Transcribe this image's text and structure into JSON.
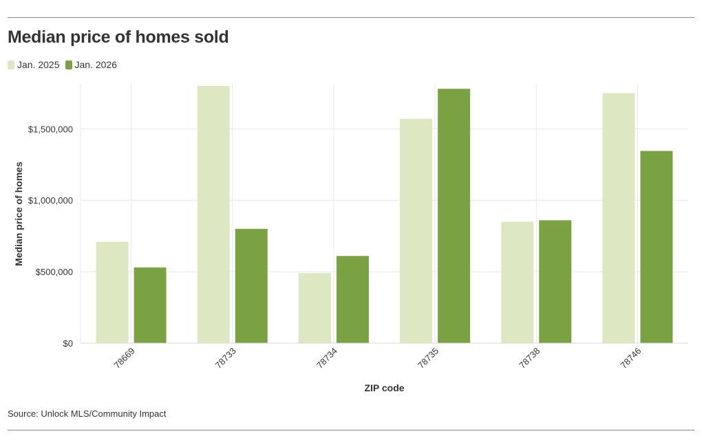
{
  "header": {
    "title": "Median price of homes sold"
  },
  "legend": {
    "items": [
      {
        "label": "Jan. 2025",
        "color": "#dde8c3"
      },
      {
        "label": "Jan. 2026",
        "color": "#7aa142"
      }
    ]
  },
  "footer": {
    "source": "Source: Unlock MLS/Community Impact"
  },
  "chart_data": {
    "type": "bar",
    "title": "Median price of homes sold",
    "xlabel": "ZIP code",
    "ylabel": "Median price of homes",
    "categories": [
      "78669",
      "78733",
      "78734",
      "78735",
      "78738",
      "78746"
    ],
    "series": [
      {
        "name": "Jan. 2025",
        "color": "#dde8c3",
        "values": [
          710000,
          1800000,
          490000,
          1570000,
          850000,
          1750000
        ]
      },
      {
        "name": "Jan. 2026",
        "color": "#7aa142",
        "values": [
          530000,
          800000,
          610000,
          1780000,
          860000,
          1345000
        ]
      }
    ],
    "ylim": [
      0,
      1800000
    ],
    "yticks": [
      {
        "value": 0,
        "label": "$0"
      },
      {
        "value": 500000,
        "label": "$500,000"
      },
      {
        "value": 1000000,
        "label": "$1,000,000"
      },
      {
        "value": 1500000,
        "label": "$1,500,000"
      }
    ],
    "grid": true,
    "legend_position": "top-left"
  }
}
